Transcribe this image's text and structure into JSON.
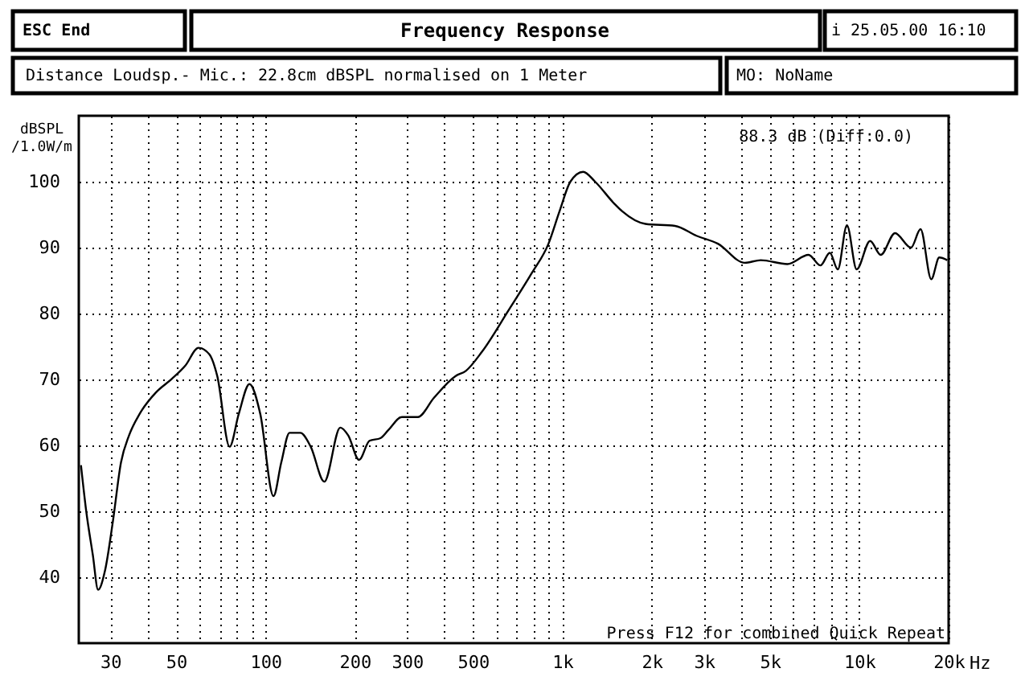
{
  "chart_data": {
    "type": "line",
    "title": "Frequency Response",
    "ylabel": "dBSPL /1.0W/m",
    "annotations": [
      "ESC End",
      "i 25.05.00 16:10",
      "Distance Loudsp.- Mic.: 22.8cm dBSPL normalised on 1 Meter",
      "MO: NoName",
      "88.3 dB (Diff:0.0)",
      "Press F12 for combined Quick Repeat"
    ],
    "x": [
      23.9,
      24.9,
      26.2,
      27.3,
      28.8,
      30.6,
      32.6,
      34.7,
      37.7,
      42.7,
      48.4,
      53.7,
      59.5,
      64.7,
      68.8,
      75.7,
      81.3,
      88.3,
      96,
      106.4,
      113,
      120.5,
      131,
      142,
      157.8,
      178.6,
      190,
      206.6,
      224,
      244,
      259,
      288,
      326,
      369,
      436,
      473,
      536,
      659,
      788,
      898,
      978,
      1064,
      1175,
      1289,
      1494,
      1592,
      1905,
      2396,
      2829,
      3340,
      4115,
      4657,
      5727,
      6750,
      7400,
      7960,
      8470,
      9090,
      9800,
      10880,
      11810,
      13200,
      14940,
      16090,
      17480,
      18600,
      19800
    ],
    "series": [
      {
        "color": "#000000",
        "values": [
          57.0,
          50,
          43.4,
          38.1,
          41,
          48.4,
          57.4,
          61.5,
          64.8,
          68,
          70.1,
          72.1,
          74.8,
          73.8,
          70.5,
          59.8,
          64.8,
          69.3,
          64.8,
          52.3,
          57.4,
          61.9,
          61.9,
          59.8,
          54.5,
          62.7,
          61.5,
          57.8,
          60.7,
          61.1,
          62.3,
          64.3,
          64.3,
          67.2,
          70.5,
          71.3,
          74.2,
          80.5,
          86.1,
          90.6,
          95.5,
          100,
          101.5,
          100,
          96.7,
          95.5,
          93.6,
          93.3,
          91.8,
          90.6,
          87.7,
          88.1,
          87.5,
          88.9,
          87.3,
          89.2,
          86.7,
          93.4,
          86.7,
          91,
          88.9,
          92.2,
          90,
          92.8,
          85.2,
          88.5,
          88.1
        ]
      }
    ],
    "xlim": [
      23.5,
      20000
    ],
    "ylim": [
      30,
      110
    ],
    "xticks": [
      30,
      {
        "value": 40,
        "label": null
      },
      50,
      {
        "value": 60,
        "label": null
      },
      {
        "value": 70,
        "label": null
      },
      {
        "value": 80,
        "label": null
      },
      {
        "value": 90,
        "label": null
      },
      100,
      200,
      300,
      {
        "value": 400,
        "label": null
      },
      500,
      {
        "value": 600,
        "label": null
      },
      {
        "value": 700,
        "label": null
      },
      {
        "value": 800,
        "label": null
      },
      {
        "value": 900,
        "label": null
      },
      {
        "value": 1000,
        "label": "1k"
      },
      {
        "value": 2000,
        "label": "2k"
      },
      {
        "value": 3000,
        "label": "3k"
      },
      {
        "value": 4000,
        "label": null
      },
      {
        "value": 5000,
        "label": "5k"
      },
      {
        "value": 6000,
        "label": null
      },
      {
        "value": 7000,
        "label": null
      },
      {
        "value": 8000,
        "label": null
      },
      {
        "value": 9000,
        "label": null
      },
      {
        "value": 10000,
        "label": "10k"
      },
      {
        "value": 20000,
        "label": "20k"
      }
    ],
    "xlabel": "Hz",
    "yticks": [
      40,
      50,
      60,
      70,
      80,
      90,
      100
    ],
    "log": "x",
    "grid": true,
    "marker": "none",
    "line_style": "solid"
  }
}
